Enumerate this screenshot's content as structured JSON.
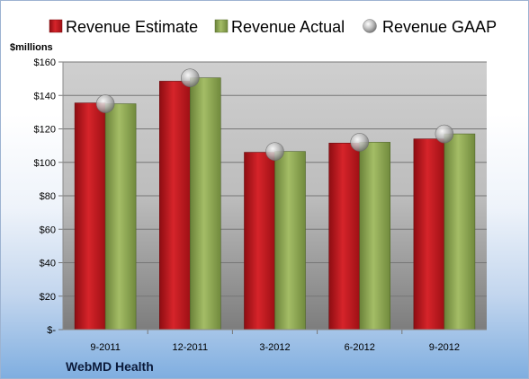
{
  "chart_data": {
    "type": "bar",
    "title": "",
    "ylabel": "$millions",
    "company": "WebMD Health",
    "categories": [
      "9-2011",
      "12-2011",
      "3-2012",
      "6-2012",
      "9-2012"
    ],
    "series": [
      {
        "name": "Revenue Estimate",
        "kind": "bar",
        "color": "#c8171d",
        "values": [
          135.5,
          148.5,
          106,
          111.5,
          114
        ]
      },
      {
        "name": "Revenue Actual",
        "kind": "bar",
        "color": "#8fa856",
        "values": [
          135,
          150.5,
          106.5,
          112,
          117
        ]
      },
      {
        "name": "Revenue GAAP",
        "kind": "marker",
        "color": "#a8a8a8",
        "values": [
          135,
          150.5,
          106.5,
          112,
          117
        ]
      }
    ],
    "ylim": [
      0,
      160
    ],
    "yticks": [
      0,
      20,
      40,
      60,
      80,
      100,
      120,
      140,
      160
    ],
    "ytick_labels": [
      "$-",
      "$20",
      "$40",
      "$60",
      "$80",
      "$100",
      "$120",
      "$140",
      "$160"
    ],
    "grid": true,
    "legend": "top"
  }
}
